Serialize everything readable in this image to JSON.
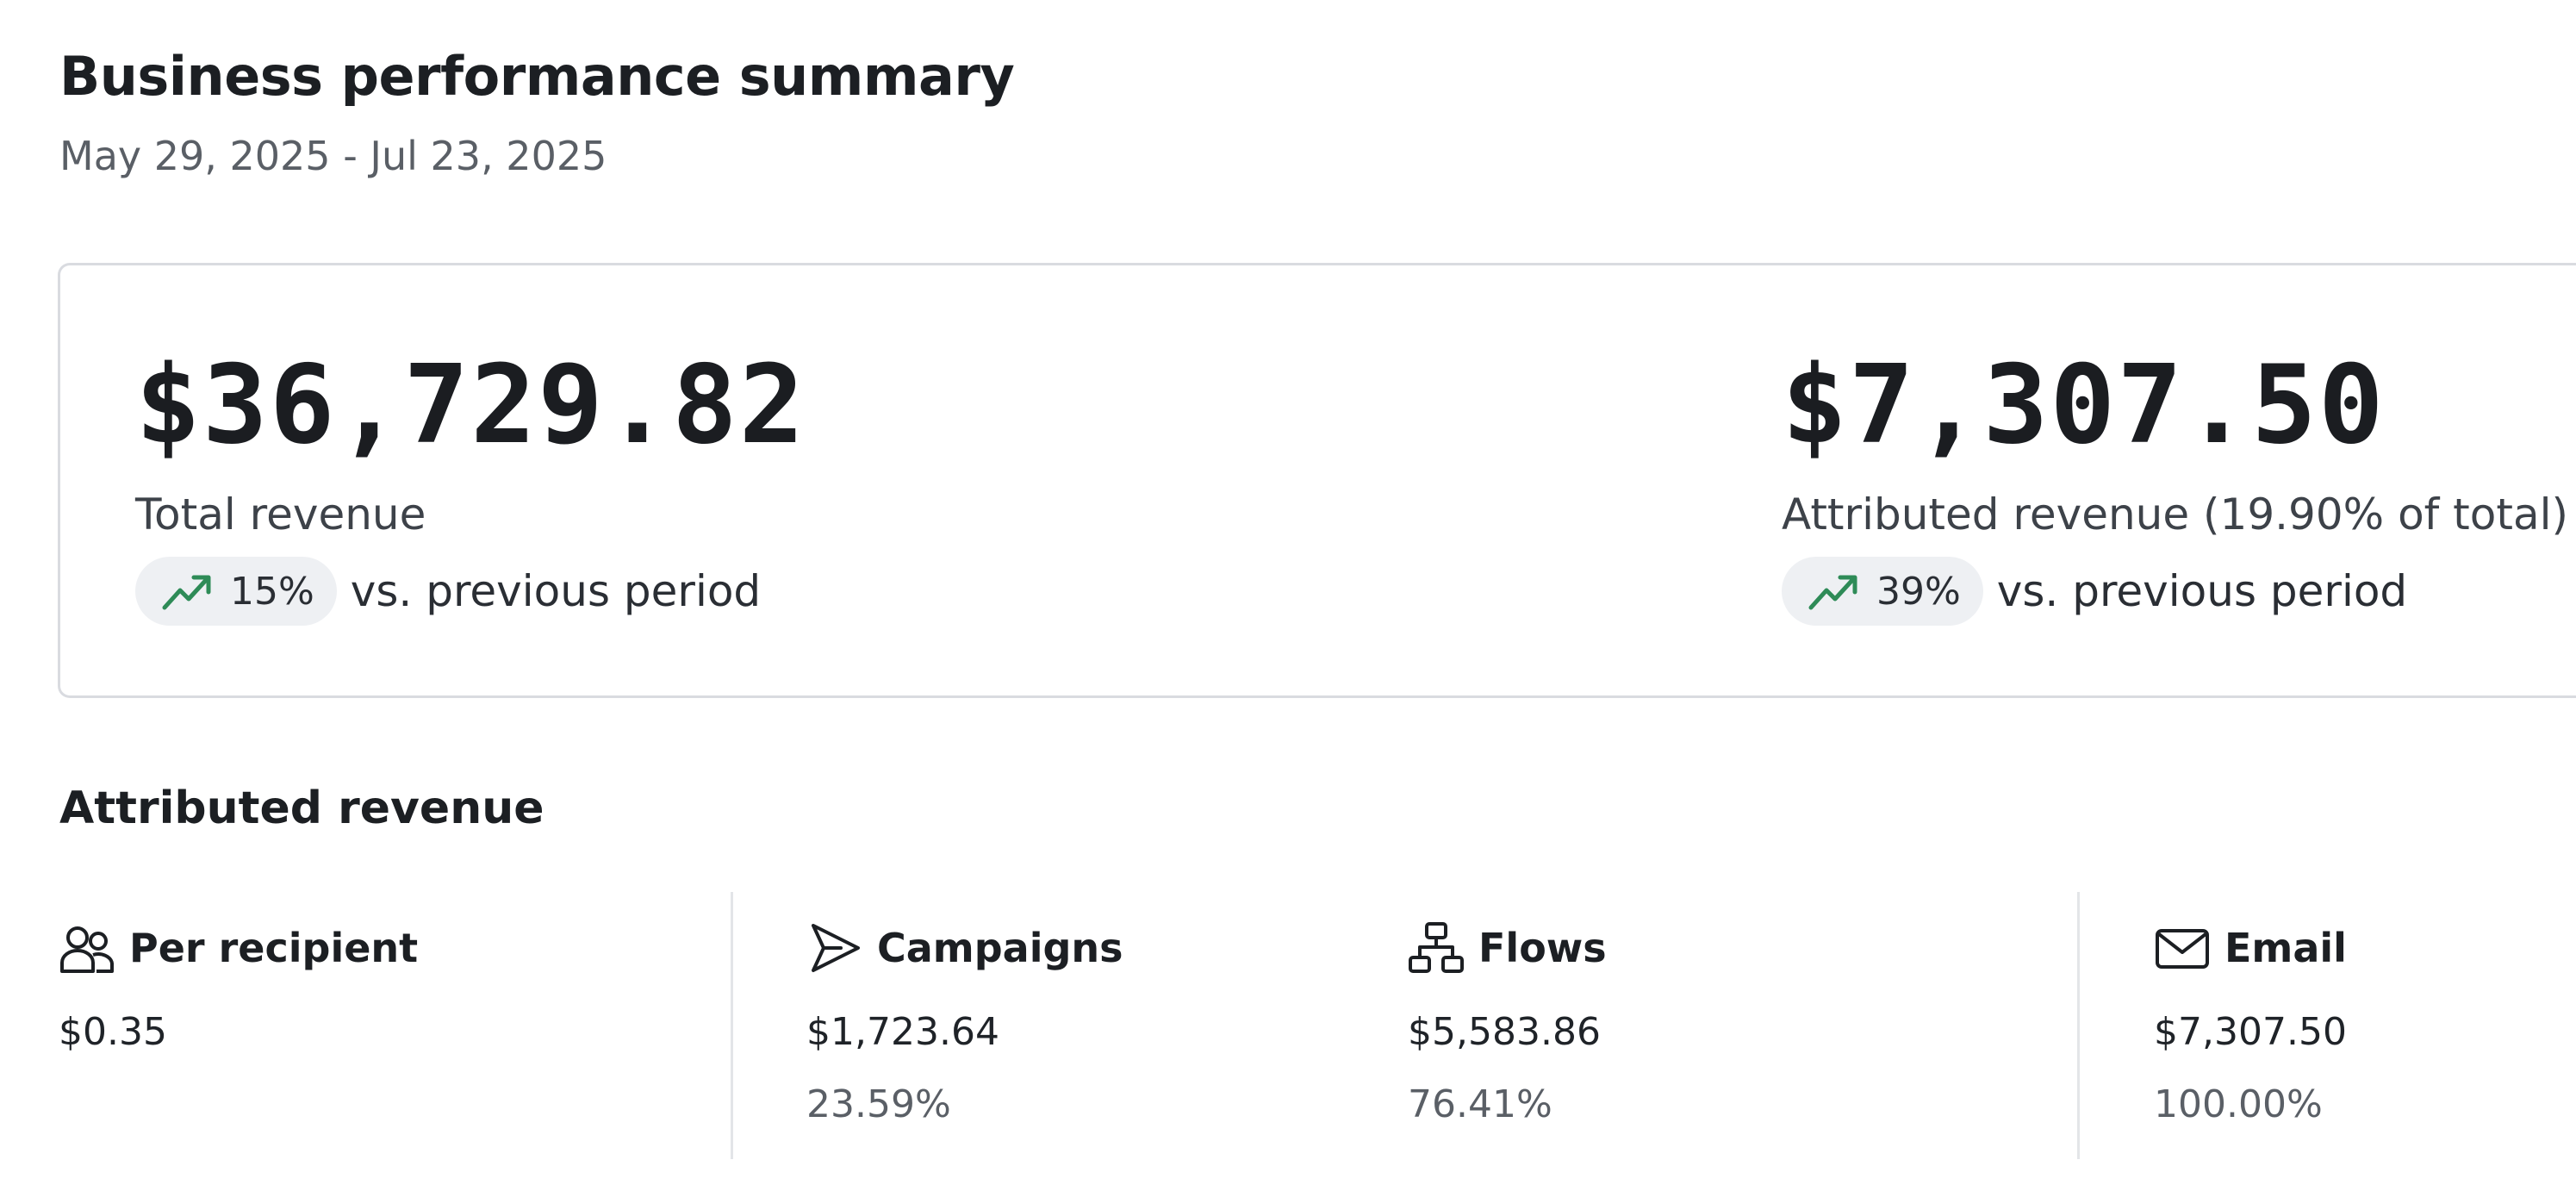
{
  "header": {
    "title": "Business performance summary",
    "date_range": "May 29, 2025 - Jul 23, 2025"
  },
  "summary": {
    "total": {
      "value": "$36,729.82",
      "label": "Total revenue",
      "trend_percent": "15%",
      "trend_text": "vs. previous period",
      "trend_icon": "trending-up-icon"
    },
    "attributed": {
      "value": "$7,307.50",
      "label": "Attributed revenue (19.90% of total)",
      "trend_percent": "39%",
      "trend_text": "vs. previous period",
      "trend_icon": "trending-up-icon"
    }
  },
  "attributed_section": {
    "title": "Attributed revenue",
    "stats": [
      {
        "label": "Per recipient",
        "icon": "users-icon",
        "amount": "$0.35"
      },
      {
        "label": "Campaigns",
        "icon": "send-icon",
        "amount": "$1,723.64",
        "share": "23.59%"
      },
      {
        "label": "Flows",
        "icon": "flow-icon",
        "amount": "$5,583.86",
        "share": "76.41%"
      },
      {
        "label": "Email",
        "icon": "mail-icon",
        "amount": "$7,307.50",
        "share": "100.00%"
      }
    ]
  },
  "colors": {
    "trend_up": "#2e8b57",
    "pill_bg": "#eef0f3",
    "card_border": "#d9dbe0",
    "muted_text": "#5a5f66"
  }
}
